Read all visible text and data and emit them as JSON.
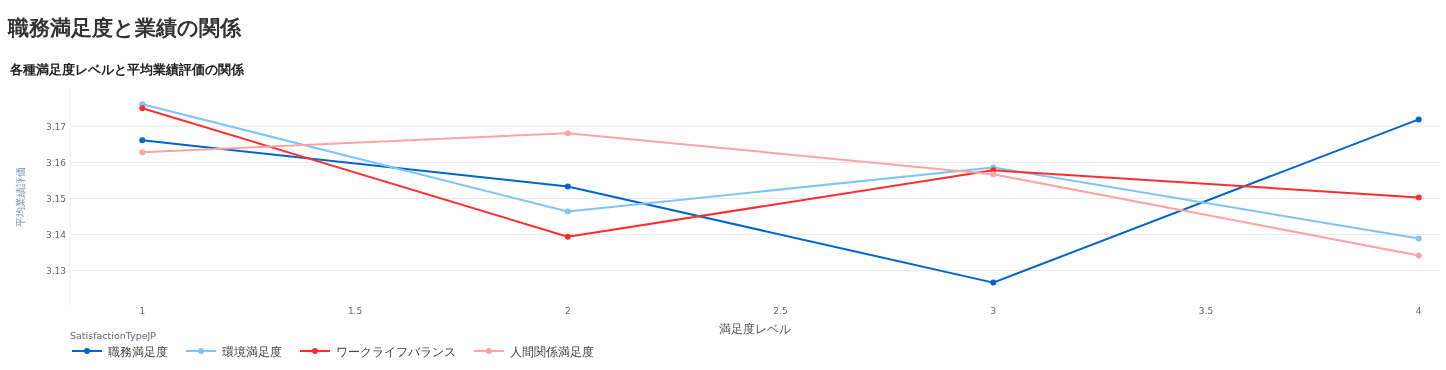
{
  "chart_data": {
    "type": "line",
    "title": "職務満足度と業績の関係",
    "subtitle": "各種満足度レベルと平均業績評価の関係",
    "xlabel": "満足度レベル",
    "ylabel": "平均業績評価",
    "legend_title": "SatisfactionTypeJP",
    "x": [
      1,
      2,
      3,
      4
    ],
    "series": [
      {
        "name": "職務満足度",
        "color": "#0066cc",
        "values": [
          3.1661,
          3.1533,
          3.1267,
          3.1719
        ]
      },
      {
        "name": "環境満足度",
        "color": "#7fc4fd",
        "values": [
          3.1761,
          3.1464,
          3.1586,
          3.1389
        ]
      },
      {
        "name": "ワークライフバランス",
        "color": "#ff2e2e",
        "values": [
          3.175,
          3.1394,
          3.1578,
          3.1503
        ]
      },
      {
        "name": "人間関係満足度",
        "color": "#ffa4a4",
        "values": [
          3.1628,
          3.1681,
          3.1567,
          3.1342
        ]
      }
    ],
    "xlim": [
      0.83,
      4.05
    ],
    "xticks": [
      1,
      1.5,
      2,
      2.5,
      3,
      3.5,
      4
    ],
    "ylim": [
      3.1205,
      3.1806
    ],
    "yticks": [
      3.13,
      3.14,
      3.15,
      3.16,
      3.17
    ],
    "grid": "y",
    "legend": "bottom",
    "marker": "circle",
    "line_style": "solid"
  }
}
